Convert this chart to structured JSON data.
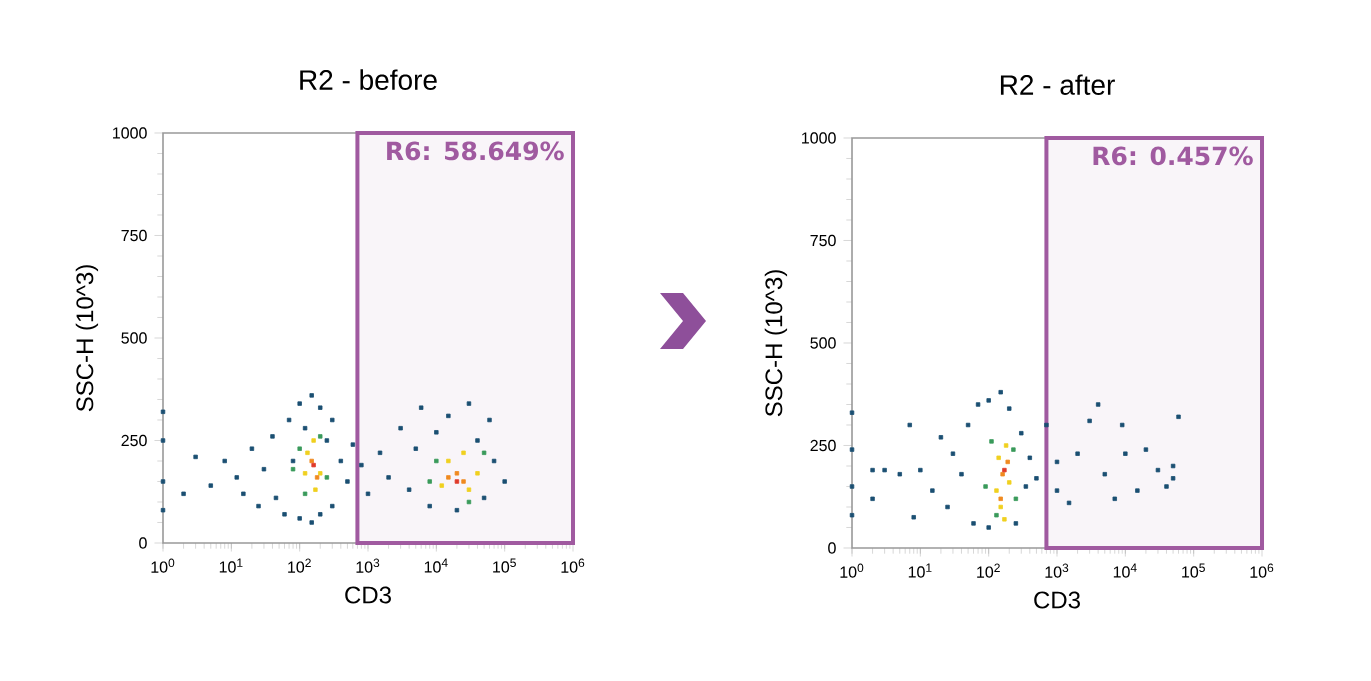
{
  "chart_data": [
    {
      "type": "scatter",
      "title": "R2 - before",
      "xlabel": "CD3",
      "ylabel": "SSC-H (10^3)",
      "log": "x",
      "marker": "square",
      "xlim": [
        1,
        1000000
      ],
      "ylim": [
        0,
        1000
      ],
      "xticks": [
        {
          "value": 1,
          "label": "10$^{0}$"
        },
        {
          "value": 10,
          "label": "10$^{1}$"
        },
        {
          "value": 100,
          "label": "10$^{2}$"
        },
        {
          "value": 1000,
          "label": "10$^{3}$"
        },
        {
          "value": 10000,
          "label": "10$^{4}$"
        },
        {
          "value": 100000,
          "label": "10$^{5}$"
        },
        {
          "value": 1000000,
          "label": "10$^{6}$"
        }
      ],
      "yticks": [
        0,
        250,
        500,
        750,
        1000
      ],
      "bands": [
        {
          "axis": "x",
          "from": 700,
          "to": 1000000,
          "label": "R6: 58.649%",
          "color": "#a05aa0"
        }
      ],
      "series": [
        {
          "color": "#1b4f72",
          "x": [
            1,
            1,
            1,
            1,
            2,
            3,
            5,
            8,
            12,
            15,
            20,
            25,
            30,
            40,
            45,
            60,
            70,
            80,
            100,
            100,
            120,
            150,
            150,
            200,
            200,
            250,
            300,
            300,
            400,
            500,
            600,
            800,
            1000,
            1500,
            2000,
            3000,
            4000,
            5000,
            6000,
            8000,
            10000,
            15000,
            20000,
            30000,
            40000,
            50000,
            60000,
            70000,
            100000
          ],
          "values": [
            80,
            150,
            250,
            320,
            120,
            210,
            140,
            200,
            160,
            120,
            230,
            90,
            180,
            260,
            110,
            70,
            300,
            200,
            340,
            60,
            280,
            360,
            50,
            330,
            70,
            250,
            300,
            90,
            200,
            150,
            240,
            190,
            120,
            220,
            160,
            280,
            130,
            230,
            330,
            90,
            270,
            310,
            80,
            340,
            250,
            110,
            300,
            200,
            150
          ]
        },
        {
          "color": "#3a9a5b",
          "x": [
            100,
            120,
            250,
            200,
            80,
            10000,
            30000,
            50000,
            8000
          ],
          "values": [
            230,
            120,
            160,
            260,
            180,
            200,
            100,
            220,
            150
          ]
        },
        {
          "color": "#f0d020",
          "x": [
            130,
            170,
            160,
            200,
            120,
            15000,
            30000,
            12000,
            25000,
            40000
          ],
          "values": [
            220,
            130,
            250,
            170,
            170,
            200,
            130,
            140,
            220,
            170
          ]
        },
        {
          "color": "#f08a20",
          "x": [
            150,
            180,
            20000,
            25000,
            15000
          ],
          "values": [
            200,
            160,
            170,
            150,
            160
          ]
        },
        {
          "color": "#e03a2a",
          "x": [
            160,
            20000
          ],
          "values": [
            190,
            150
          ]
        }
      ]
    },
    {
      "type": "scatter",
      "title": "R2 - after",
      "xlabel": "CD3",
      "ylabel": "SSC-H (10^3)",
      "log": "x",
      "marker": "square",
      "xlim": [
        1,
        1000000
      ],
      "ylim": [
        0,
        1000
      ],
      "xticks": [
        {
          "value": 1,
          "label": "10$^{0}$"
        },
        {
          "value": 10,
          "label": "10$^{1}$"
        },
        {
          "value": 100,
          "label": "10$^{2}$"
        },
        {
          "value": 1000,
          "label": "10$^{3}$"
        },
        {
          "value": 10000,
          "label": "10$^{4}$"
        },
        {
          "value": 100000,
          "label": "10$^{5}$"
        },
        {
          "value": 1000000,
          "label": "10$^{6}$"
        }
      ],
      "yticks": [
        0,
        250,
        500,
        750,
        1000
      ],
      "bands": [
        {
          "axis": "x",
          "from": 700,
          "to": 1000000,
          "label": "R6: 0.457%",
          "color": "#a05aa0"
        }
      ],
      "series": [
        {
          "color": "#1b4f72",
          "x": [
            1,
            1,
            1,
            1,
            2,
            2,
            3,
            5,
            7,
            8,
            10,
            15,
            20,
            25,
            30,
            40,
            50,
            60,
            70,
            100,
            100,
            150,
            200,
            250,
            300,
            350,
            400,
            500,
            700,
            1000,
            1000,
            1500,
            2000,
            3000,
            4000,
            5000,
            7000,
            9000,
            10000,
            15000,
            20000,
            30000,
            40000,
            50000,
            60000,
            50000
          ],
          "values": [
            80,
            150,
            240,
            330,
            120,
            190,
            190,
            180,
            300,
            75,
            190,
            140,
            270,
            100,
            230,
            180,
            300,
            60,
            350,
            360,
            50,
            380,
            340,
            60,
            280,
            150,
            220,
            170,
            300,
            140,
            210,
            110,
            230,
            310,
            350,
            180,
            120,
            300,
            230,
            140,
            240,
            190,
            150,
            200,
            320,
            170
          ]
        },
        {
          "color": "#3a9a5b",
          "x": [
            90,
            110,
            250,
            230,
            130
          ],
          "values": [
            150,
            260,
            120,
            240,
            80
          ]
        },
        {
          "color": "#f0d020",
          "x": [
            150,
            140,
            200,
            170,
            180,
            130
          ],
          "values": [
            100,
            220,
            160,
            70,
            250,
            140
          ]
        },
        {
          "color": "#f08a20",
          "x": [
            160,
            190,
            150
          ],
          "values": [
            180,
            210,
            120
          ]
        },
        {
          "color": "#e03a2a",
          "x": [
            170
          ],
          "values": [
            190
          ]
        }
      ]
    }
  ]
}
